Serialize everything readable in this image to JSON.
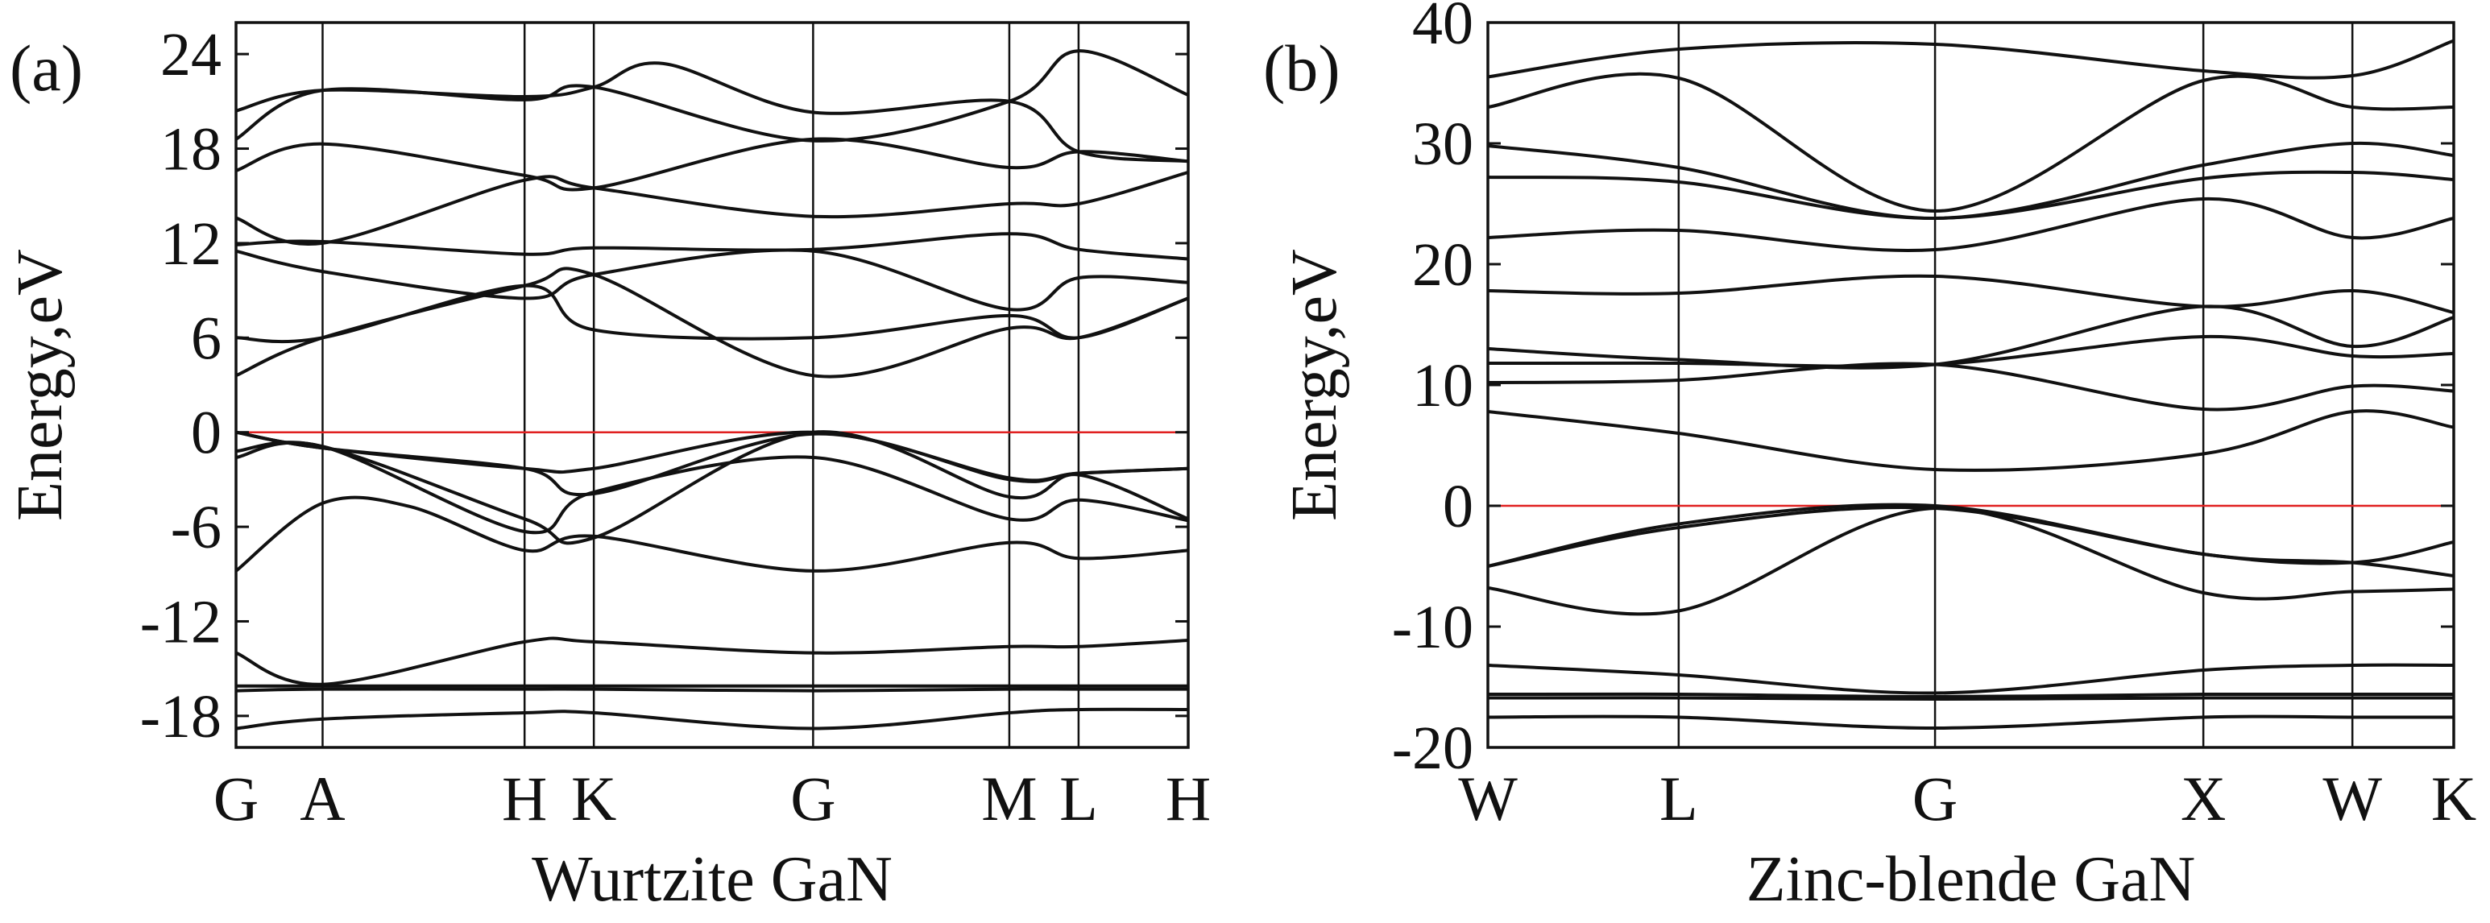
{
  "chart_data": [
    {
      "type": "line",
      "panel_tag": "(a)",
      "title": "",
      "xlabel": "Wurtzite GaN",
      "ylabel": "Energy,eV",
      "ylim": [
        -20,
        26
      ],
      "yticks": [
        24,
        18,
        12,
        6,
        0,
        -6,
        -12,
        -18
      ],
      "ytick_labels": [
        "24",
        "18",
        "12",
        "6",
        "0",
        "-6",
        "-12",
        "-18"
      ],
      "xlim": [
        0,
        8.25
      ],
      "kpoints": [
        {
          "label": "G",
          "x": 0
        },
        {
          "label": "A",
          "x": 0.75
        },
        {
          "label": "H",
          "x": 2.5
        },
        {
          "label": "K",
          "x": 3.1
        },
        {
          "label": "G",
          "x": 5.0
        },
        {
          "label": "M",
          "x": 6.7
        },
        {
          "label": "L",
          "x": 7.3
        },
        {
          "label": "H",
          "x": 8.25
        }
      ],
      "fermi_level": 0,
      "fermi_color": "#e02020",
      "band_color": "#111111",
      "series": [
        {
          "name": "band-1",
          "x": [
            0,
            0.75,
            2.5,
            3.1,
            5,
            6.7,
            7.3,
            8.25
          ],
          "values": [
            -18.8,
            -18.2,
            -17.8,
            -17.8,
            -18.8,
            -17.8,
            -17.6,
            -17.6
          ]
        },
        {
          "name": "band-2",
          "x": [
            0,
            0.75,
            2.5,
            3.1,
            5,
            6.7,
            7.3,
            8.25
          ],
          "values": [
            -16.1,
            -16.1,
            -16.1,
            -16.1,
            -16.1,
            -16.1,
            -16.1,
            -16.1
          ]
        },
        {
          "name": "band-3",
          "x": [
            0,
            0.75,
            2.5,
            3.1,
            5,
            6.7,
            7.3,
            8.25
          ],
          "values": [
            -16.4,
            -16.3,
            -16.3,
            -16.3,
            -16.4,
            -16.3,
            -16.3,
            -16.3
          ]
        },
        {
          "name": "band-4",
          "x": [
            0,
            0.75,
            2.5,
            3.1,
            5,
            6.7,
            7.3,
            8.25
          ],
          "values": [
            -14,
            -16,
            -13.3,
            -13.3,
            -14,
            -13.6,
            -13.6,
            -13.2
          ]
        },
        {
          "name": "band-5",
          "x": [
            0,
            0.75,
            1.5,
            2.5,
            3.1,
            5,
            6.7,
            7.3,
            8.25
          ],
          "values": [
            -8.8,
            -4.5,
            -4.7,
            -7.5,
            -6.6,
            -8.8,
            -7,
            -8,
            -7.5
          ]
        },
        {
          "name": "band-6",
          "x": [
            0,
            0.75,
            2.5,
            3.1,
            5,
            6.7,
            7.3,
            8.25
          ],
          "values": [
            -1.6,
            -0.9,
            -6.3,
            -3.8,
            -1.6,
            -5.5,
            -4.3,
            -5.6
          ]
        },
        {
          "name": "band-7",
          "x": [
            0,
            0.75,
            2.5,
            3.1,
            5,
            6.7,
            7.3,
            8.25
          ],
          "values": [
            -1.2,
            -0.9,
            -5.5,
            -6.7,
            0,
            -4.1,
            -2.7,
            -5.5
          ]
        },
        {
          "name": "band-8",
          "x": [
            0,
            0.75,
            2.5,
            3.1,
            5,
            6.7,
            7.3,
            8.25
          ],
          "values": [
            0,
            -1,
            -2.3,
            -3.9,
            -0.1,
            -3,
            -2.6,
            -2.3
          ]
        },
        {
          "name": "band-9",
          "x": [
            0,
            0.75,
            2.5,
            3.1,
            5,
            6.7,
            7.3,
            8.25
          ],
          "values": [
            0,
            -1,
            -2.3,
            -2.3,
            0,
            -2.9,
            -2.6,
            -2.3
          ]
        },
        {
          "name": "band-10",
          "x": [
            0,
            0.75,
            2.5,
            3.1,
            5,
            6.7,
            7.3,
            8.25
          ],
          "values": [
            3.6,
            6,
            9.3,
            10,
            3.6,
            6.6,
            6,
            8.5
          ]
        },
        {
          "name": "band-11",
          "x": [
            0,
            0.75,
            2.5,
            3.1,
            5,
            6.7,
            7.3,
            8.25
          ],
          "values": [
            6,
            6,
            9.3,
            6.5,
            6,
            7.4,
            6,
            8.5
          ]
        },
        {
          "name": "band-12",
          "x": [
            0,
            0.75,
            2.5,
            3.1,
            5,
            6.7,
            7.3,
            8.25
          ],
          "values": [
            11.5,
            10.2,
            8.5,
            10,
            11.5,
            7.8,
            9.8,
            9.5
          ]
        },
        {
          "name": "band-13",
          "x": [
            0,
            0.75,
            2.5,
            3.1,
            5,
            6.7,
            7.3,
            8.25
          ],
          "values": [
            11.9,
            12.1,
            11.3,
            11.7,
            11.6,
            12.6,
            11.6,
            11
          ]
        },
        {
          "name": "band-14",
          "x": [
            0,
            0.75,
            2.5,
            3.1,
            5,
            6.7,
            7.3,
            8.25
          ],
          "values": [
            13.6,
            12,
            16,
            15.5,
            13.7,
            14.5,
            14.5,
            16.5
          ]
        },
        {
          "name": "band-15",
          "x": [
            0,
            0.75,
            2.5,
            3.1,
            5,
            6.7,
            7.3,
            8.25
          ],
          "values": [
            16.6,
            18.3,
            16.3,
            15.5,
            18.6,
            16.8,
            17.8,
            17.2
          ]
        },
        {
          "name": "band-16",
          "x": [
            0,
            0.75,
            2.5,
            3.1,
            5,
            6.7,
            7.3,
            8.25
          ],
          "values": [
            18.6,
            21.7,
            21.1,
            21.9,
            18.5,
            21,
            24.2,
            21.4
          ]
        },
        {
          "name": "band-17",
          "x": [
            0,
            0.75,
            2.5,
            3.1,
            3.7,
            5,
            6.7,
            7.3,
            8.25
          ],
          "values": [
            20.4,
            21.7,
            21.3,
            21.9,
            23.4,
            20.3,
            21,
            17.8,
            17.2
          ]
        }
      ]
    },
    {
      "type": "line",
      "panel_tag": "(b)",
      "title": "",
      "xlabel": "Zinc-blende GaN",
      "ylabel": "Energy,eV",
      "ylim": [
        -20,
        40
      ],
      "yticks": [
        40,
        30,
        20,
        10,
        0,
        -10,
        -20
      ],
      "ytick_labels": [
        "40",
        "30",
        "20",
        "10",
        "0",
        "-10",
        "-20"
      ],
      "xlim": [
        0,
        8.1
      ],
      "kpoints": [
        {
          "label": "W",
          "x": 0
        },
        {
          "label": "L",
          "x": 1.6
        },
        {
          "label": "G",
          "x": 3.75
        },
        {
          "label": "X",
          "x": 6.0
        },
        {
          "label": "W",
          "x": 7.25
        },
        {
          "label": "K",
          "x": 8.1
        }
      ],
      "fermi_level": 0,
      "fermi_color": "#e02020",
      "band_color": "#111111",
      "series": [
        {
          "name": "band-1",
          "x": [
            0,
            1.6,
            3.75,
            6,
            7.25,
            8.1
          ],
          "values": [
            -17.5,
            -17.5,
            -18.4,
            -17.5,
            -17.5,
            -17.5
          ]
        },
        {
          "name": "band-2",
          "x": [
            0,
            1.6,
            3.75,
            6,
            7.25,
            8.1
          ],
          "values": [
            -15.6,
            -15.6,
            -15.8,
            -15.6,
            -15.6,
            -15.6
          ]
        },
        {
          "name": "band-3",
          "x": [
            0,
            1.6,
            3.75,
            6,
            7.25,
            8.1
          ],
          "values": [
            -15.9,
            -15.9,
            -16,
            -15.9,
            -15.9,
            -15.9
          ]
        },
        {
          "name": "band-4",
          "x": [
            0,
            1.6,
            3.75,
            6,
            7.25,
            8.1
          ],
          "values": [
            -13.2,
            -14,
            -15.5,
            -13.6,
            -13.2,
            -13.2
          ]
        },
        {
          "name": "band-5",
          "x": [
            0,
            1.6,
            3.75,
            6,
            7.25,
            8.1
          ],
          "values": [
            -6.8,
            -8.7,
            -0.2,
            -7.2,
            -7.1,
            -6.9
          ]
        },
        {
          "name": "band-6",
          "x": [
            0,
            1.6,
            3.75,
            6,
            7.25,
            8.1
          ],
          "values": [
            -5,
            -1.8,
            -0.2,
            -4,
            -4.7,
            -3
          ]
        },
        {
          "name": "band-7",
          "x": [
            0,
            1.6,
            3.75,
            6,
            7.25,
            8.1
          ],
          "values": [
            -5,
            -1.5,
            0,
            -4,
            -4.7,
            -5.8
          ]
        },
        {
          "name": "band-8",
          "x": [
            0,
            1.6,
            3.75,
            6,
            7.25,
            8.1
          ],
          "values": [
            7.8,
            6,
            3,
            4.3,
            7.8,
            6.5
          ]
        },
        {
          "name": "band-9",
          "x": [
            0,
            1.6,
            3.75,
            6,
            7.25,
            8.1
          ],
          "values": [
            10.2,
            10.4,
            11.7,
            8,
            9.9,
            9.5
          ]
        },
        {
          "name": "band-10",
          "x": [
            0,
            1.6,
            3.75,
            6,
            7.25,
            8.1
          ],
          "values": [
            11.8,
            11.8,
            11.7,
            14,
            12.4,
            12.6
          ]
        },
        {
          "name": "band-11",
          "x": [
            0,
            1.6,
            3.75,
            6,
            7.25,
            8.1
          ],
          "values": [
            13,
            12.1,
            11.7,
            16.5,
            13.2,
            15.6
          ]
        },
        {
          "name": "band-12",
          "x": [
            0,
            1.6,
            3.75,
            6,
            7.25,
            8.1
          ],
          "values": [
            17.8,
            17.6,
            19,
            16.5,
            17.8,
            16
          ]
        },
        {
          "name": "band-13",
          "x": [
            0,
            1.6,
            3.75,
            6,
            7.25,
            8.1
          ],
          "values": [
            22.2,
            22.8,
            21.2,
            25.4,
            22.2,
            23.8
          ]
        },
        {
          "name": "band-14",
          "x": [
            0,
            1.6,
            3.75,
            6,
            7.25,
            8.1
          ],
          "values": [
            27.2,
            26.8,
            23.8,
            27.1,
            27.6,
            27
          ]
        },
        {
          "name": "band-15",
          "x": [
            0,
            1.6,
            3.75,
            6,
            7.25,
            8.1
          ],
          "values": [
            29.8,
            28,
            23.8,
            28.2,
            30,
            29
          ]
        },
        {
          "name": "band-16",
          "x": [
            0,
            1.6,
            3.75,
            6,
            7.25,
            8.1
          ],
          "values": [
            33,
            35.4,
            24.4,
            35.2,
            33,
            33
          ]
        },
        {
          "name": "band-17",
          "x": [
            0,
            1.6,
            3.75,
            6,
            7.25,
            8.1
          ],
          "values": [
            35.5,
            37.8,
            38.2,
            36,
            35.6,
            38.5
          ]
        }
      ]
    }
  ]
}
